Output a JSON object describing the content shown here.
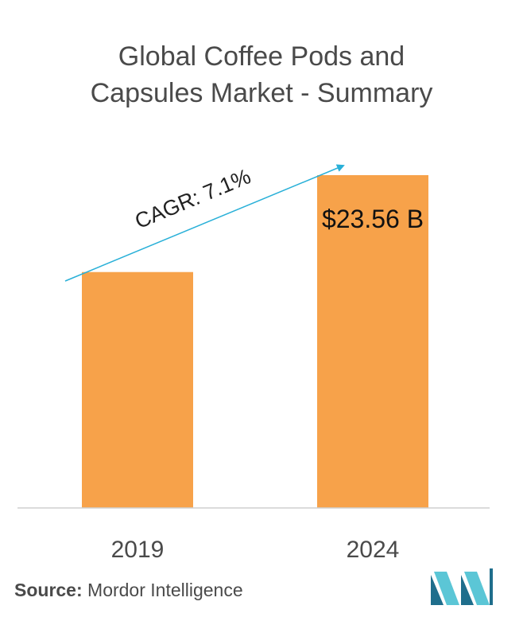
{
  "title_line1": "Global Coffee Pods and",
  "title_line2": "Capsules Market - Summary",
  "chart_data": {
    "type": "bar",
    "categories": [
      "2019",
      "2024"
    ],
    "values": [
      16.7,
      23.56
    ],
    "data_labels": [
      "",
      "$23.56 B"
    ],
    "annotation": "CAGR: 7.1%",
    "ylim": [
      0,
      23.56
    ],
    "grid": false,
    "colors": {
      "bar": "#f7a24a",
      "arrow": "#29b0d8",
      "axis": "#cfcfcf"
    }
  },
  "source": {
    "label": "Source:",
    "text": " Mordor Intelligence"
  }
}
